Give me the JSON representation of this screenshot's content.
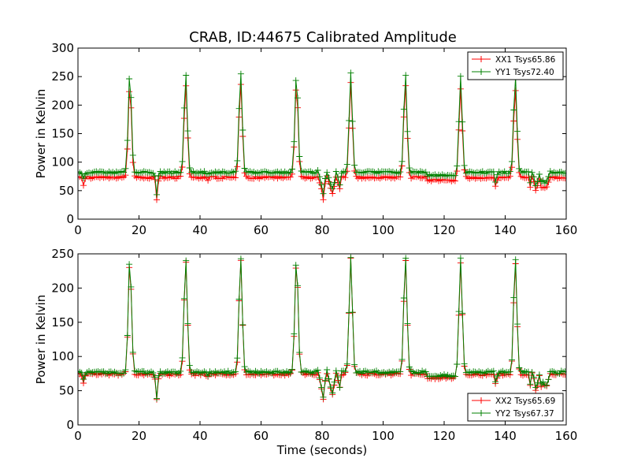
{
  "chart_data": [
    {
      "type": "line",
      "title": "CRAB, ID:44675 Calibrated Amplitude",
      "xlabel": "",
      "ylabel": "Power in Kelvin",
      "xlim": [
        0,
        160
      ],
      "ylim": [
        0,
        300
      ],
      "xticks": [
        "0",
        "20",
        "40",
        "60",
        "80",
        "100",
        "120",
        "140",
        "160"
      ],
      "yticks": [
        "0",
        "50",
        "100",
        "150",
        "200",
        "250",
        "300"
      ],
      "legend_position": "top-right",
      "grid": false,
      "peaks": [
        17,
        35.3,
        53.3,
        71.6,
        89.4,
        107.3,
        125.4,
        143.3
      ],
      "series": [
        {
          "name": "XX1 Tsys65.86",
          "color": "#ff0000",
          "baseline": 73,
          "peak_heights": [
            233,
            236,
            241,
            238,
            239,
            237,
            230,
            230
          ]
        },
        {
          "name": "YY1 Tsys72.40",
          "color": "#008000",
          "baseline": 82,
          "peak_heights": [
            257,
            257,
            257,
            256,
            255,
            256,
            252,
            253
          ]
        }
      ]
    },
    {
      "type": "line",
      "title": "",
      "xlabel": "Time (seconds)",
      "ylabel": "Power in Kelvin",
      "xlim": [
        0,
        160
      ],
      "ylim": [
        0,
        250
      ],
      "xticks": [
        "0",
        "20",
        "40",
        "60",
        "80",
        "100",
        "120",
        "140",
        "160"
      ],
      "yticks": [
        "0",
        "50",
        "100",
        "150",
        "200",
        "250"
      ],
      "legend_position": "bottom-right",
      "grid": false,
      "peaks": [
        17,
        35.3,
        53.3,
        71.6,
        89.4,
        107.3,
        125.4,
        143.3
      ],
      "series": [
        {
          "name": "XX2 Tsys65.69",
          "color": "#ff0000",
          "baseline": 74,
          "peak_heights": [
            240,
            241,
            242,
            242,
            242,
            242,
            238,
            240
          ]
        },
        {
          "name": "YY2 Tsys67.37",
          "color": "#008000",
          "baseline": 77,
          "peak_heights": [
            245,
            245,
            246,
            246,
            246,
            246,
            242,
            244
          ]
        }
      ]
    }
  ]
}
